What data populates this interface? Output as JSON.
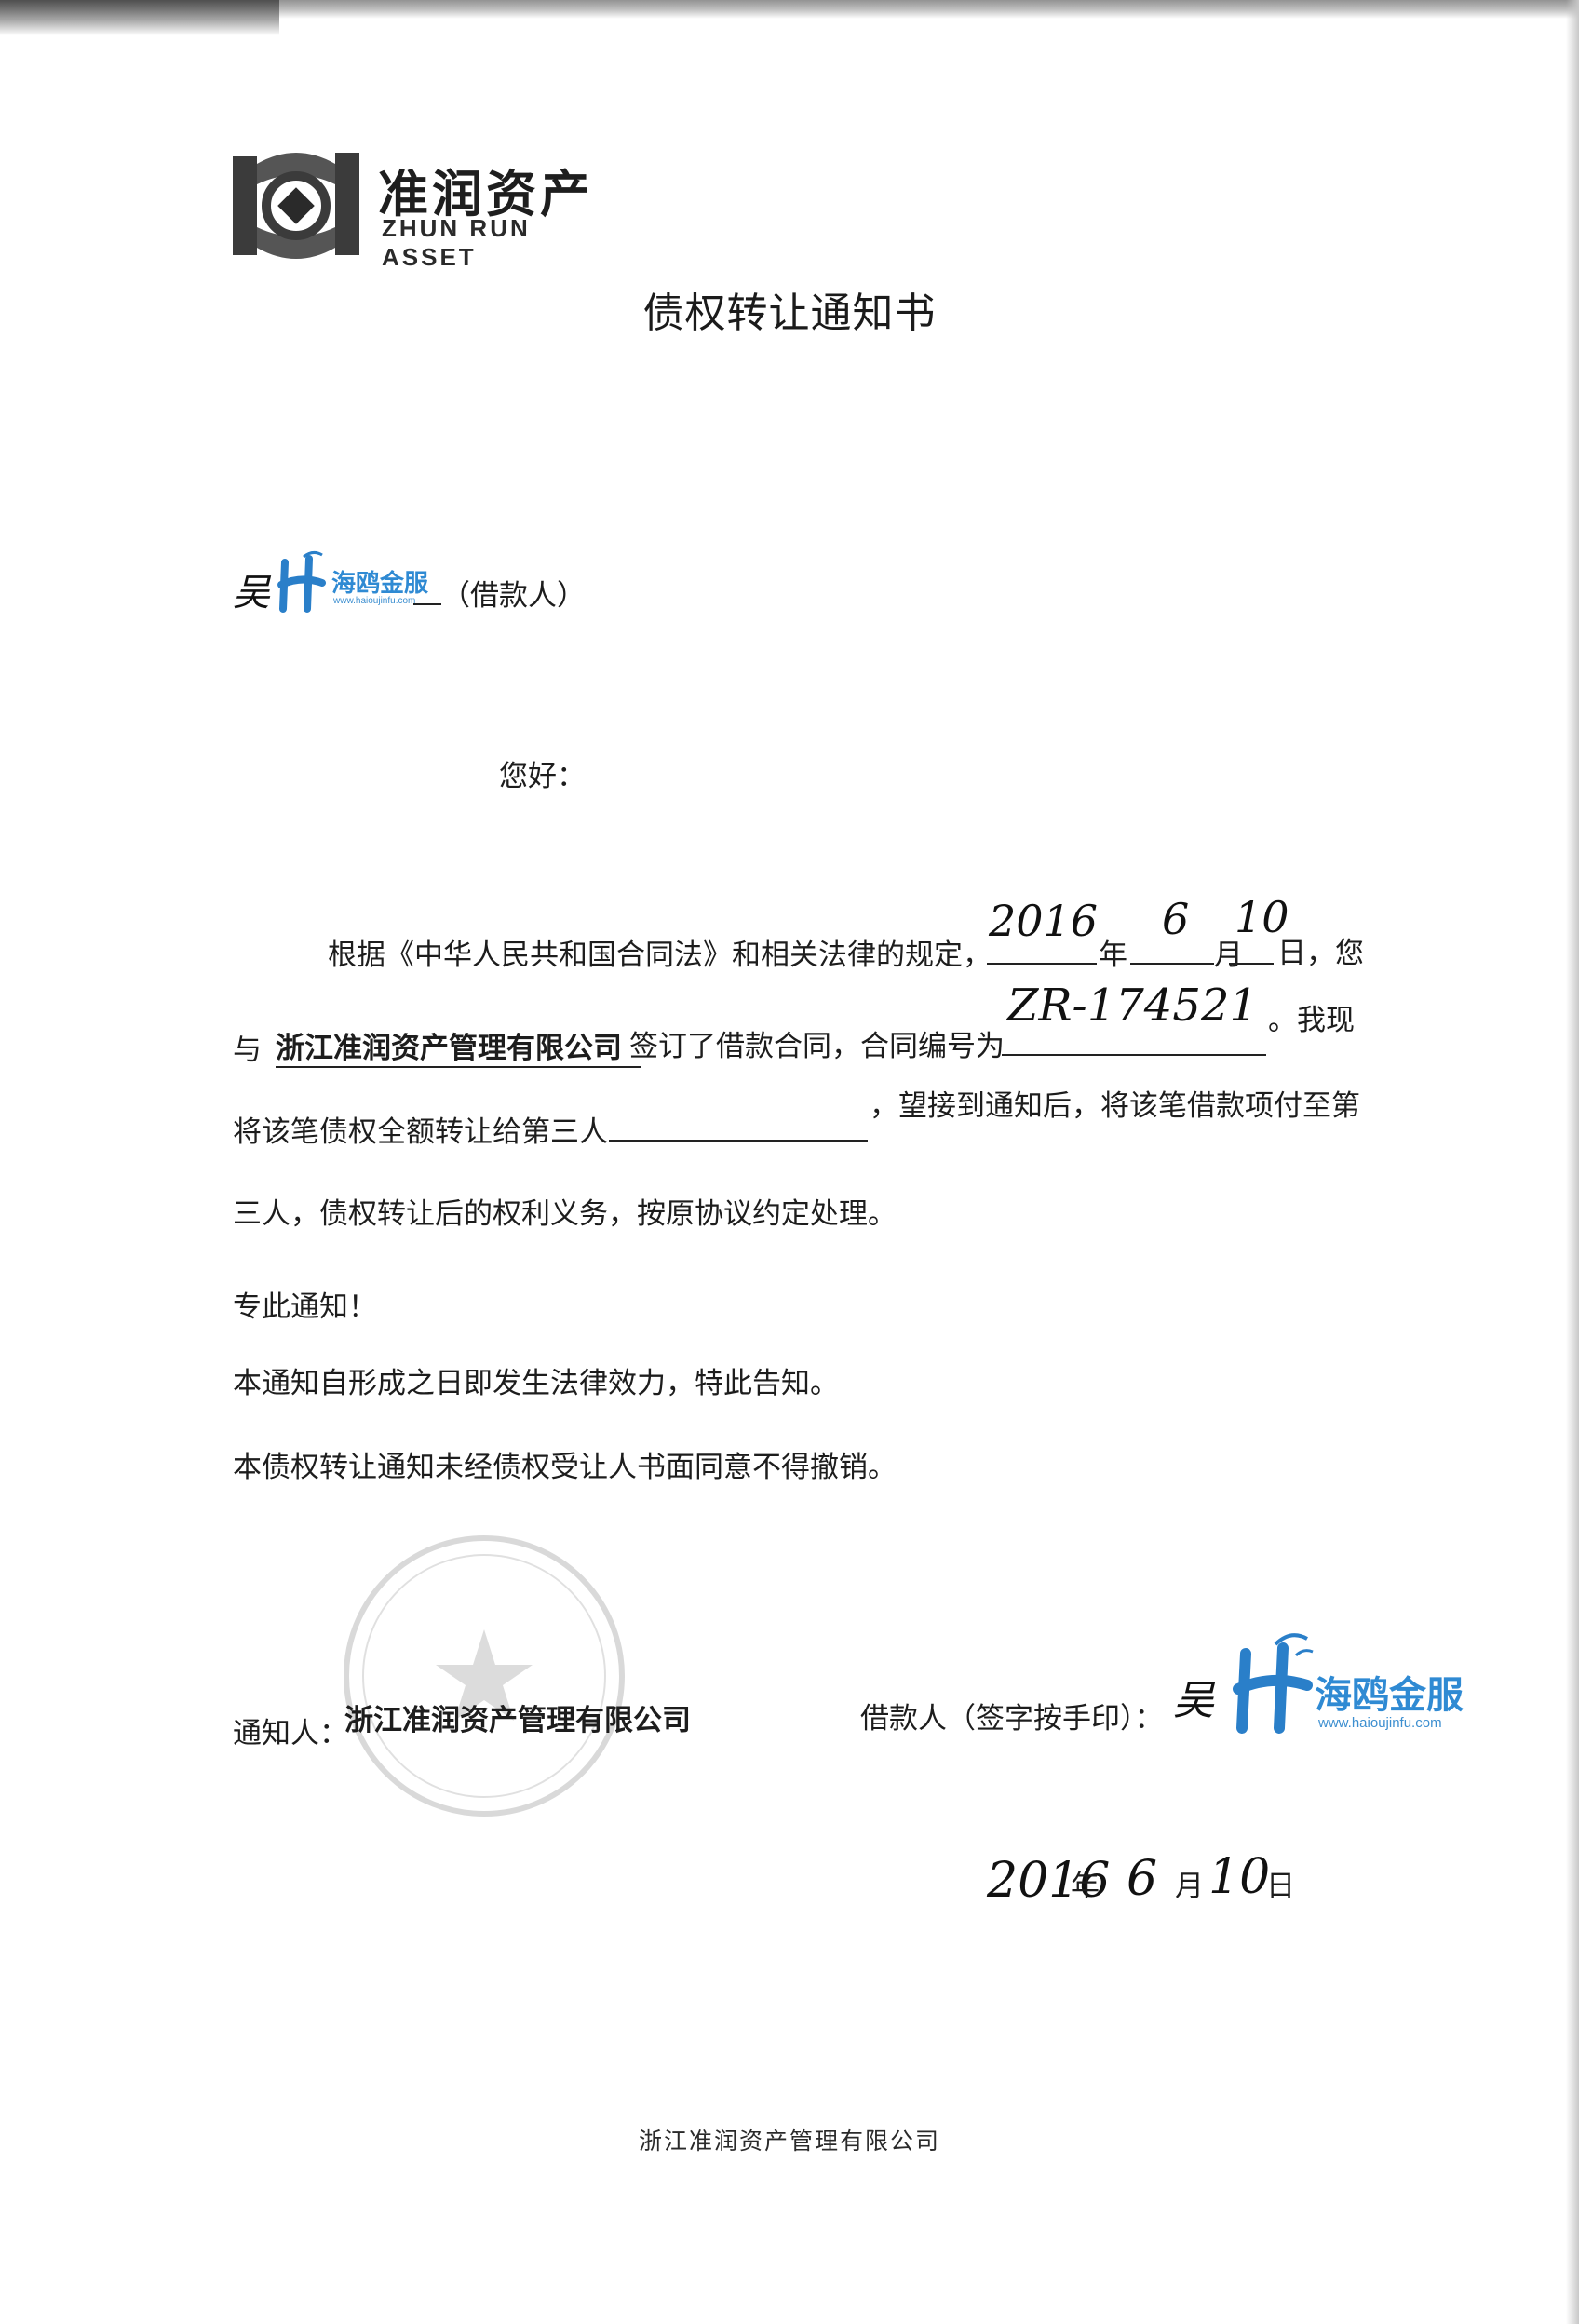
{
  "logo": {
    "name_cn": "准润资产",
    "name_en": "ZHUN RUN ASSET"
  },
  "title": "债权转让通知书",
  "borrower_brand": {
    "name": "海鸥金服",
    "url": "www.haioujinfu.com"
  },
  "addressee": {
    "handwritten_name": "吴",
    "role_suffix": "（借款人）"
  },
  "greeting": "您好：",
  "body": {
    "line1_prefix": "根据《中华人民共和国合同法》和相关法律的规定，",
    "year_filled": "2016",
    "year_label": "年",
    "month_filled": "6",
    "month_label": "月",
    "day_filled": "10",
    "day_label": "日，您",
    "line2_prefix": "与",
    "company": "浙江准润资产管理有限公司",
    "line2_mid": "签订了借款合同，合同编号为",
    "contract_no": "ZR-174521",
    "line2_suffix": "。我现",
    "line3_prefix": "将该笔债权全额转让给第三人",
    "line3_suffix": "，望接到通知后，将该笔借款项付至第",
    "line4": "三人，债权转让后的权利义务，按原协议约定处理。"
  },
  "notice_lines": [
    "专此通知！",
    "本通知自形成之日即发生法律效力，特此告知。",
    "本债权转让通知未经债权受让人书面同意不得撤销。"
  ],
  "signatures": {
    "notifier_label": "通知人：",
    "notifier": "浙江准润资产管理有限公司",
    "borrower_label": "借款人（签字按手印）：",
    "borrower_handwritten": "吴"
  },
  "sign_date": {
    "year": "2016",
    "year_label": "年",
    "month": "6",
    "month_label": "月",
    "day": "10",
    "day_label": "日"
  },
  "footer_company": "浙江准润资产管理有限公司",
  "colors": {
    "brand_blue": "#2f8ad3",
    "ink": "#1b1b1b"
  }
}
